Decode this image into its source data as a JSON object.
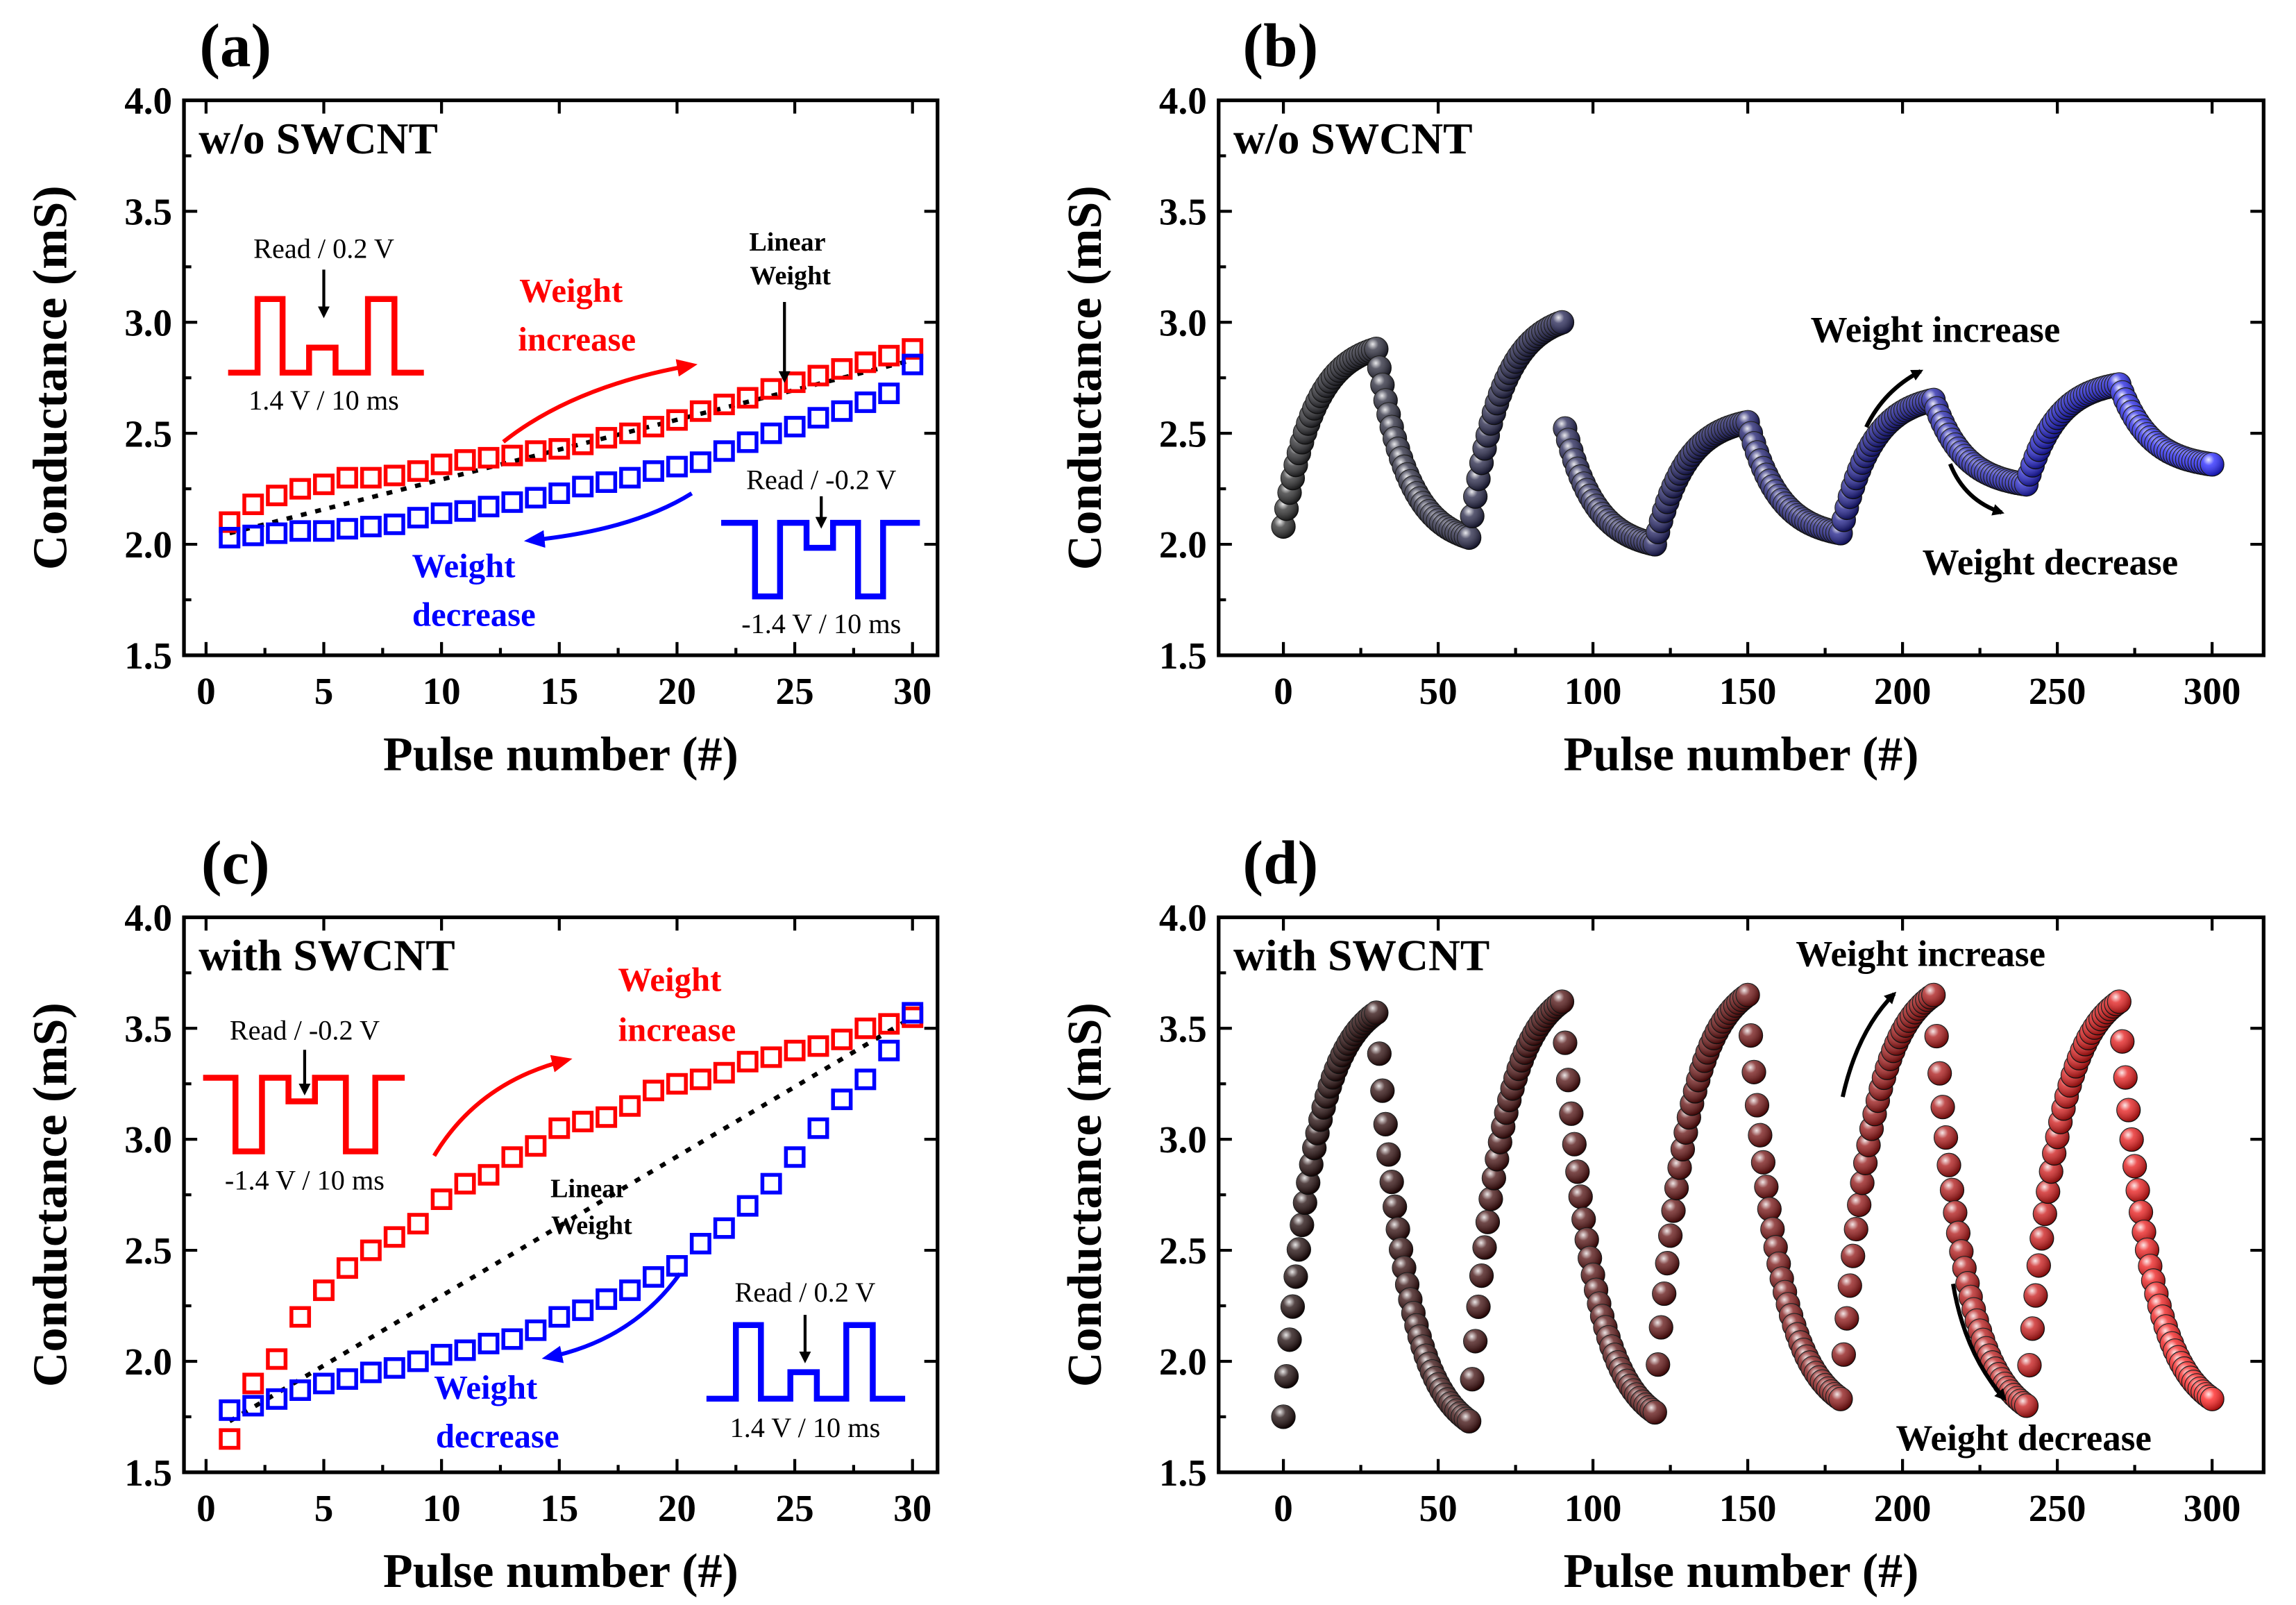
{
  "chart_data": [
    {
      "panel": "(a)",
      "type": "scatter",
      "title": "w/o SWCNT",
      "xlabel": "Pulse number (#)",
      "ylabel": "Conductance (mS)",
      "xlim": [
        0,
        30
      ],
      "ylim": [
        1.5,
        4.0
      ],
      "xticks": [
        0,
        5,
        10,
        15,
        20,
        25,
        30
      ],
      "yticks": [
        1.5,
        2.0,
        2.5,
        3.0,
        3.5,
        4.0
      ],
      "ytick_labels": [
        "1.5",
        "2.0",
        "2.5",
        "3.0",
        "3.5",
        "4.0"
      ],
      "x": [
        1,
        2,
        3,
        4,
        5,
        6,
        7,
        8,
        9,
        10,
        11,
        12,
        13,
        14,
        15,
        16,
        17,
        18,
        19,
        20,
        21,
        22,
        23,
        24,
        25,
        26,
        27,
        28,
        29,
        30
      ],
      "series": [
        {
          "name": "Weight increase",
          "color": "#ff0000",
          "marker": "open-square",
          "values": [
            2.1,
            2.18,
            2.22,
            2.25,
            2.27,
            2.3,
            2.3,
            2.31,
            2.33,
            2.36,
            2.38,
            2.39,
            2.4,
            2.42,
            2.43,
            2.45,
            2.48,
            2.5,
            2.53,
            2.56,
            2.6,
            2.63,
            2.66,
            2.7,
            2.73,
            2.76,
            2.79,
            2.82,
            2.85,
            2.88
          ]
        },
        {
          "name": "Weight decrease",
          "color": "#0000ff",
          "marker": "open-square",
          "values": [
            2.03,
            2.04,
            2.05,
            2.06,
            2.06,
            2.07,
            2.08,
            2.09,
            2.12,
            2.14,
            2.15,
            2.17,
            2.19,
            2.21,
            2.23,
            2.26,
            2.28,
            2.3,
            2.33,
            2.35,
            2.37,
            2.42,
            2.46,
            2.5,
            2.53,
            2.57,
            2.6,
            2.64,
            2.68,
            2.81
          ]
        }
      ],
      "linear_weight": {
        "from": [
          1,
          2.05
        ],
        "to": [
          30,
          2.83
        ]
      },
      "annotations": {
        "inc_read": "Read / 0.2 V",
        "inc_pulse": "1.4 V / 10 ms",
        "inc_label_1": "Weight",
        "inc_label_2": "increase",
        "linear_1": "Linear",
        "linear_2": "Weight",
        "dec_read": "Read / -0.2 V",
        "dec_pulse": "-1.4 V / 10 ms",
        "dec_label_1": "Weight",
        "dec_label_2": "decrease"
      }
    },
    {
      "panel": "(b)",
      "type": "scatter",
      "title": "w/o SWCNT",
      "xlabel": "Pulse number (#)",
      "ylabel": "Conductance (mS)",
      "xlim": [
        0,
        300
      ],
      "ylim": [
        1.5,
        4.0
      ],
      "xticks": [
        0,
        50,
        100,
        150,
        200,
        250,
        300
      ],
      "yticks": [
        1.5,
        2.0,
        2.5,
        3.0,
        3.5,
        4.0
      ],
      "ytick_labels": [
        "1.5",
        "2.0",
        "2.5",
        "3.0",
        "3.5",
        "4.0"
      ],
      "color_stops": [
        "#2b2b2b",
        "#1a1a6a",
        "#2222ff"
      ],
      "segments": [
        {
          "x": [
            0,
            30
          ],
          "y": [
            2.08,
            2.88
          ],
          "dir": "increase"
        },
        {
          "x": [
            30,
            60
          ],
          "y": [
            2.88,
            2.03
          ],
          "dir": "decrease"
        },
        {
          "x": [
            60,
            90
          ],
          "y": [
            2.03,
            3.0
          ],
          "dir": "increase"
        },
        {
          "x": [
            90,
            120
          ],
          "y": [
            2.58,
            2.0
          ],
          "dir": "decrease"
        },
        {
          "x": [
            120,
            150
          ],
          "y": [
            2.0,
            2.55
          ],
          "dir": "increase"
        },
        {
          "x": [
            150,
            180
          ],
          "y": [
            2.55,
            2.05
          ],
          "dir": "decrease"
        },
        {
          "x": [
            180,
            210
          ],
          "y": [
            2.05,
            2.65
          ],
          "dir": "increase"
        },
        {
          "x": [
            210,
            240
          ],
          "y": [
            2.65,
            2.27
          ],
          "dir": "decrease"
        },
        {
          "x": [
            240,
            270
          ],
          "y": [
            2.27,
            2.72
          ],
          "dir": "increase"
        },
        {
          "x": [
            270,
            300
          ],
          "y": [
            2.72,
            2.36
          ],
          "dir": "decrease"
        }
      ],
      "annotations": {
        "inc_label": "Weight increase",
        "dec_label": "Weight decrease"
      }
    },
    {
      "panel": "(c)",
      "type": "scatter",
      "title": "with SWCNT",
      "xlabel": "Pulse number (#)",
      "ylabel": "Conductance (mS)",
      "xlim": [
        0,
        30
      ],
      "ylim": [
        1.5,
        4.0
      ],
      "xticks": [
        0,
        5,
        10,
        15,
        20,
        25,
        30
      ],
      "yticks": [
        1.5,
        2.0,
        2.5,
        3.0,
        3.5,
        4.0
      ],
      "ytick_labels": [
        "1.5",
        "2.0",
        "2.5",
        "3.0",
        "3.5",
        "4.0"
      ],
      "x": [
        1,
        2,
        3,
        4,
        5,
        6,
        7,
        8,
        9,
        10,
        11,
        12,
        13,
        14,
        15,
        16,
        17,
        18,
        19,
        20,
        21,
        22,
        23,
        24,
        25,
        26,
        27,
        28,
        29,
        30
      ],
      "series": [
        {
          "name": "Weight increase",
          "color": "#ff0000",
          "marker": "open-square",
          "values": [
            1.65,
            1.9,
            2.01,
            2.2,
            2.32,
            2.42,
            2.5,
            2.56,
            2.62,
            2.73,
            2.8,
            2.84,
            2.92,
            2.97,
            3.05,
            3.08,
            3.1,
            3.15,
            3.22,
            3.25,
            3.27,
            3.3,
            3.35,
            3.37,
            3.4,
            3.42,
            3.45,
            3.5,
            3.52,
            3.55
          ]
        },
        {
          "name": "Weight decrease",
          "color": "#0000ff",
          "marker": "open-square",
          "values": [
            1.78,
            1.8,
            1.83,
            1.87,
            1.9,
            1.92,
            1.95,
            1.97,
            2.0,
            2.03,
            2.05,
            2.08,
            2.1,
            2.14,
            2.2,
            2.23,
            2.28,
            2.32,
            2.38,
            2.43,
            2.53,
            2.6,
            2.7,
            2.8,
            2.92,
            3.05,
            3.18,
            3.27,
            3.4,
            3.57
          ]
        }
      ],
      "linear_weight": {
        "from": [
          1,
          1.73
        ],
        "to": [
          30,
          3.55
        ]
      },
      "annotations": {
        "inc_read": "Read / -0.2 V",
        "inc_pulse": "-1.4 V / 10 ms",
        "inc_label_1": "Weight",
        "inc_label_2": "increase",
        "linear_1": "Linear",
        "linear_2": "Weight",
        "dec_read": "Read / 0.2 V",
        "dec_pulse": "1.4 V / 10 ms",
        "dec_label_1": "Weight",
        "dec_label_2": "decrease"
      }
    },
    {
      "panel": "(d)",
      "type": "scatter",
      "title": "with SWCNT",
      "xlabel": "Pulse number (#)",
      "ylabel": "Conductance (mS)",
      "xlim": [
        0,
        300
      ],
      "ylim": [
        1.5,
        4.0
      ],
      "xticks": [
        0,
        50,
        100,
        150,
        200,
        250,
        300
      ],
      "yticks": [
        1.5,
        2.0,
        2.5,
        3.0,
        3.5,
        4.0
      ],
      "ytick_labels": [
        "1.5",
        "2.0",
        "2.5",
        "3.0",
        "3.5",
        "4.0"
      ],
      "color_stops": [
        "#1a0808",
        "#6e1010",
        "#ff1a1a"
      ],
      "segments": [
        {
          "x": [
            0,
            30
          ],
          "y": [
            1.75,
            3.57
          ],
          "dir": "increase"
        },
        {
          "x": [
            30,
            60
          ],
          "y": [
            3.57,
            1.73
          ],
          "dir": "decrease"
        },
        {
          "x": [
            60,
            90
          ],
          "y": [
            1.73,
            3.62
          ],
          "dir": "increase"
        },
        {
          "x": [
            90,
            120
          ],
          "y": [
            3.62,
            1.77
          ],
          "dir": "decrease"
        },
        {
          "x": [
            120,
            150
          ],
          "y": [
            1.8,
            3.65
          ],
          "dir": "increase"
        },
        {
          "x": [
            150,
            180
          ],
          "y": [
            3.65,
            1.83
          ],
          "dir": "decrease"
        },
        {
          "x": [
            180,
            210
          ],
          "y": [
            1.85,
            3.65
          ],
          "dir": "increase"
        },
        {
          "x": [
            210,
            240
          ],
          "y": [
            3.65,
            1.8
          ],
          "dir": "decrease"
        },
        {
          "x": [
            240,
            270
          ],
          "y": [
            1.8,
            3.62
          ],
          "dir": "increase"
        },
        {
          "x": [
            270,
            300
          ],
          "y": [
            3.62,
            1.83
          ],
          "dir": "decrease"
        }
      ],
      "annotations": {
        "inc_label": "Weight increase",
        "dec_label": "Weight decrease"
      }
    }
  ]
}
